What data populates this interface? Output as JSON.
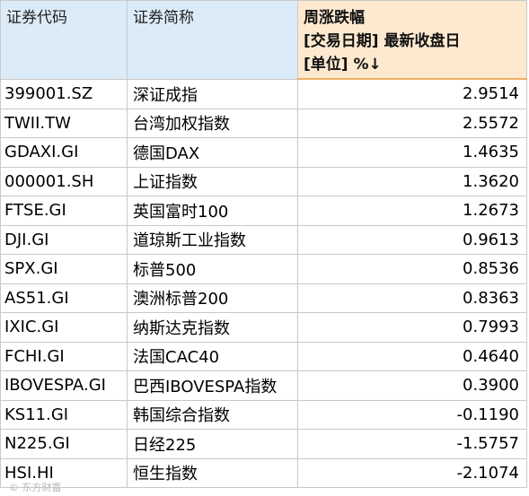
{
  "headers": {
    "code": "证券代码",
    "name": "证券简称",
    "change_line1": "周涨跌幅",
    "change_line2": "[交易日期] 最新收盘日",
    "change_line3": "[单位] %↓"
  },
  "rows": [
    {
      "code": "399001.SZ",
      "name": "深证成指",
      "change": "2.9514"
    },
    {
      "code": "TWII.TW",
      "name": "台湾加权指数",
      "change": "2.5572"
    },
    {
      "code": "GDAXI.GI",
      "name": "德国DAX",
      "change": "1.4635"
    },
    {
      "code": "000001.SH",
      "name": "上证指数",
      "change": "1.3620"
    },
    {
      "code": "FTSE.GI",
      "name": "英国富时100",
      "change": "1.2673"
    },
    {
      "code": "DJI.GI",
      "name": "道琼斯工业指数",
      "change": "0.9613"
    },
    {
      "code": "SPX.GI",
      "name": "标普500",
      "change": "0.8536"
    },
    {
      "code": "AS51.GI",
      "name": "澳洲标普200",
      "change": "0.8363"
    },
    {
      "code": "IXIC.GI",
      "name": "纳斯达克指数",
      "change": "0.7993"
    },
    {
      "code": "FCHI.GI",
      "name": "法国CAC40",
      "change": "0.4640"
    },
    {
      "code": "IBOVESPA.GI",
      "name": "巴西IBOVESPA指数",
      "change": "0.3900"
    },
    {
      "code": "KS11.GI",
      "name": "韩国综合指数",
      "change": "-0.1190"
    },
    {
      "code": "N225.GI",
      "name": "日经225",
      "change": "-1.5757"
    },
    {
      "code": "HSI.HI",
      "name": "恒生指数",
      "change": "-2.1074"
    }
  ]
}
